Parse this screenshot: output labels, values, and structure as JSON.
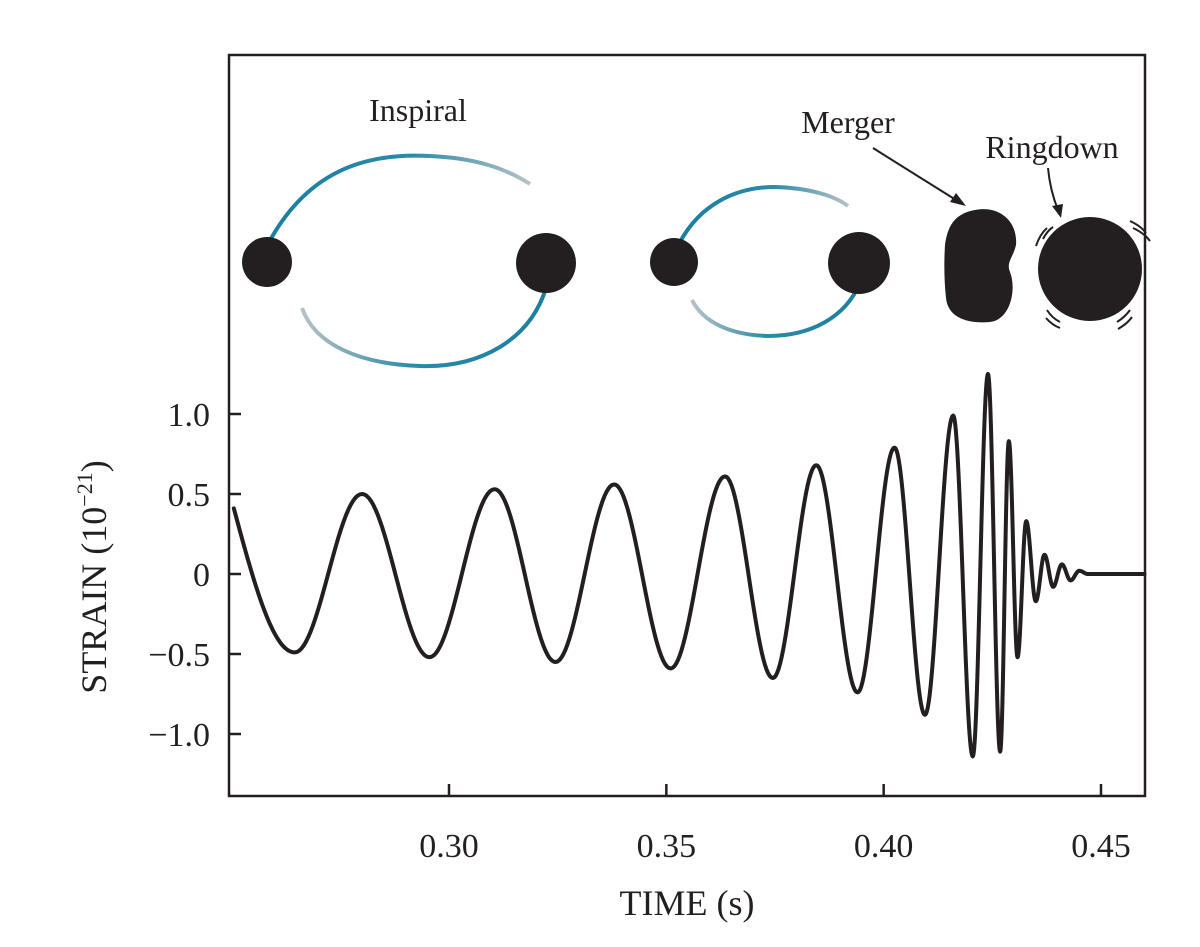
{
  "colors": {
    "ink": "#231f20",
    "orbit_front": "#1b7fa0",
    "orbit_back": "#b2bcc2",
    "background": "#ffffff"
  },
  "labels": {
    "inspiral": "Inspiral",
    "merger": "Merger",
    "ringdown": "Ringdown"
  },
  "chart_data": {
    "type": "line",
    "title": "",
    "xlabel": "TIME (s)",
    "ylabel_base": "STRAIN (10",
    "ylabel_exp": "−21",
    "ylabel_close": ")",
    "xlim": [
      0.25,
      0.46
    ],
    "ylim": [
      -1.4,
      1.25
    ],
    "xticks": [
      0.3,
      0.35,
      0.4,
      0.45
    ],
    "xtick_labels": [
      "0.30",
      "0.35",
      "0.40",
      "0.45"
    ],
    "yticks": [
      1.0,
      0.5,
      0,
      -0.5,
      -1.0
    ],
    "ytick_labels": [
      "1.0",
      "0.5",
      "0",
      "−0.5",
      "−1.0"
    ],
    "grid": false,
    "legend": "none",
    "series": [
      {
        "extrema": [
          [
            0.2505,
            0.41
          ],
          [
            0.2645,
            -0.49
          ],
          [
            0.28,
            0.5
          ],
          [
            0.2955,
            -0.52
          ],
          [
            0.3105,
            0.53
          ],
          [
            0.3245,
            -0.55
          ],
          [
            0.338,
            0.56
          ],
          [
            0.351,
            -0.59
          ],
          [
            0.3635,
            0.61
          ],
          [
            0.3745,
            -0.65
          ],
          [
            0.3845,
            0.68
          ],
          [
            0.394,
            -0.74
          ],
          [
            0.4025,
            0.79
          ],
          [
            0.4095,
            -0.88
          ],
          [
            0.416,
            0.99
          ],
          [
            0.4205,
            -1.14
          ],
          [
            0.424,
            1.25
          ],
          [
            0.4268,
            -1.11
          ],
          [
            0.4288,
            0.83
          ],
          [
            0.4308,
            -0.52
          ],
          [
            0.4328,
            0.33
          ],
          [
            0.435,
            -0.17
          ],
          [
            0.437,
            0.12
          ],
          [
            0.439,
            -0.08
          ],
          [
            0.441,
            0.06
          ],
          [
            0.443,
            -0.04
          ],
          [
            0.445,
            0.02
          ],
          [
            0.447,
            0.0
          ],
          [
            0.46,
            0.0
          ]
        ]
      }
    ]
  }
}
